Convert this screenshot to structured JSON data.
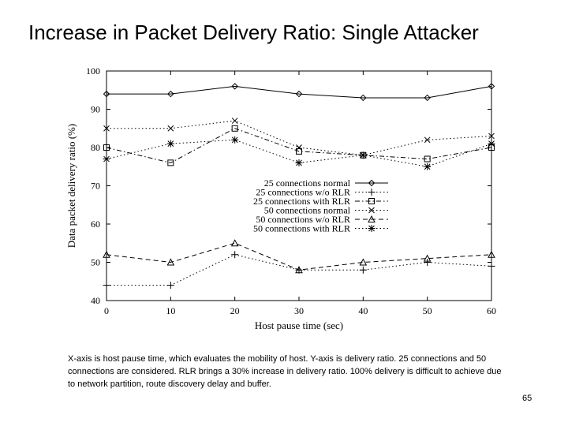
{
  "slide": {
    "title": "Increase in Packet Delivery Ratio: Single Attacker",
    "caption": "X-axis is host pause time, which evaluates the mobility of host. Y-axis is delivery ratio. 25 connections and 50 connections are considered. RLR brings a 30% increase in delivery ratio. 100% delivery is difficult to achieve due to network partition, route discovery delay and buffer.",
    "page_number": "65"
  },
  "chart_data": {
    "type": "line",
    "xlabel": "Host pause time (sec)",
    "ylabel": "Data packet delivery ratio (%)",
    "xlim": [
      0,
      60
    ],
    "ylim": [
      40,
      100
    ],
    "x_ticks": [
      0,
      10,
      20,
      30,
      40,
      50,
      60
    ],
    "y_ticks": [
      40,
      50,
      60,
      70,
      80,
      90,
      100
    ],
    "x": [
      0,
      10,
      20,
      30,
      40,
      50,
      60
    ],
    "grid": false,
    "legend_position": "center",
    "series": [
      {
        "name": "25 connections normal",
        "values": [
          94,
          94,
          96,
          94,
          93,
          93,
          96
        ],
        "marker": "diamond",
        "dash": "solid"
      },
      {
        "name": "25 connections w/o RLR",
        "values": [
          44,
          44,
          52,
          48,
          48,
          50,
          49
        ],
        "marker": "plus",
        "dash": "dotted"
      },
      {
        "name": "25 connections with RLR",
        "values": [
          80,
          76,
          85,
          79,
          78,
          77,
          80
        ],
        "marker": "square",
        "dash": "dashdot"
      },
      {
        "name": "50 connections normal",
        "values": [
          85,
          85,
          87,
          80,
          78,
          82,
          83
        ],
        "marker": "cross",
        "dash": "dotted"
      },
      {
        "name": "50 connections w/o RLR",
        "values": [
          52,
          50,
          55,
          48,
          50,
          51,
          52
        ],
        "marker": "triangle",
        "dash": "dashed"
      },
      {
        "name": "50 connections with RLR",
        "values": [
          77,
          81,
          82,
          76,
          78,
          75,
          81
        ],
        "marker": "star",
        "dash": "dotted"
      }
    ]
  }
}
